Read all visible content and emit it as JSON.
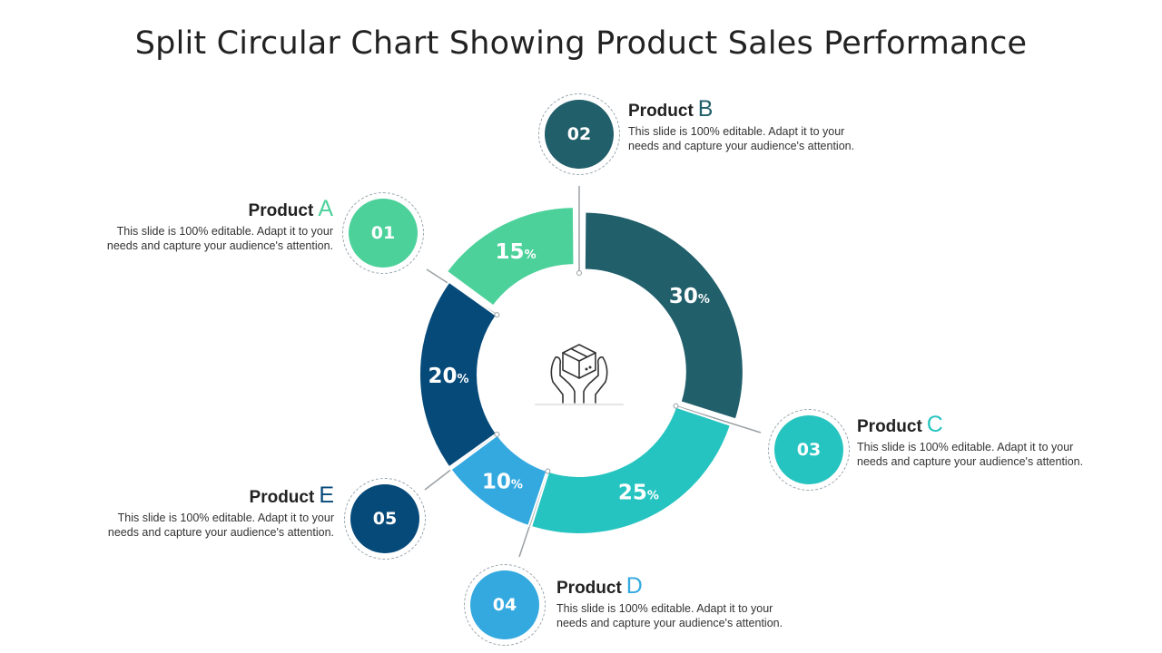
{
  "page": {
    "title": "Split Circular Chart Showing Product Sales Performance"
  },
  "colors": {
    "A": "#4dd19b",
    "B": "#215f6b",
    "C": "#26c4c0",
    "D": "#34a9e0",
    "E": "#064a7a"
  },
  "chart_data": {
    "type": "pie",
    "variant": "donut",
    "center_icon": "hands-holding-box-icon",
    "slices": [
      {
        "key": "B",
        "value": 30,
        "label": "30",
        "unit": "%"
      },
      {
        "key": "C",
        "value": 25,
        "label": "25",
        "unit": "%"
      },
      {
        "key": "D",
        "value": 10,
        "label": "10",
        "unit": "%"
      },
      {
        "key": "E",
        "value": 20,
        "label": "20",
        "unit": "%"
      },
      {
        "key": "A",
        "value": 15,
        "label": "15",
        "unit": "%"
      }
    ]
  },
  "items": {
    "A": {
      "number": "01",
      "word": "Product",
      "letter": "A",
      "desc1": "This slide is 100% editable. Adapt it to your",
      "desc2": "needs and capture your audience's attention."
    },
    "B": {
      "number": "02",
      "word": "Product",
      "letter": "B",
      "desc1": "This slide is 100% editable. Adapt it to your",
      "desc2": "needs and capture your audience's attention."
    },
    "C": {
      "number": "03",
      "word": "Product",
      "letter": "C",
      "desc1": "This slide is 100% editable. Adapt it to your",
      "desc2": "needs and capture your audience's attention."
    },
    "D": {
      "number": "04",
      "word": "Product",
      "letter": "D",
      "desc1": "This slide is 100% editable. Adapt it to your",
      "desc2": "needs and capture your audience's attention."
    },
    "E": {
      "number": "05",
      "word": "Product",
      "letter": "E",
      "desc1": "This slide is 100% editable. Adapt it to your",
      "desc2": "needs and capture your audience's attention."
    }
  }
}
